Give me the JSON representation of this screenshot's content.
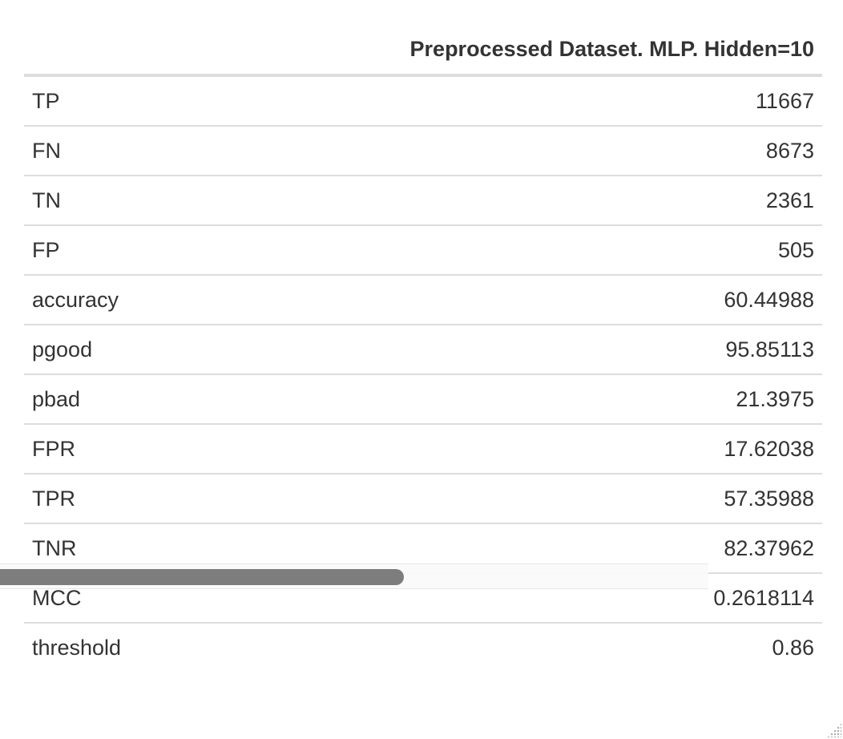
{
  "table": {
    "header": {
      "label_column": "",
      "value_column": "Preprocessed Dataset. MLP. Hidden=10"
    },
    "rows": [
      {
        "label": "TP",
        "value": "11667"
      },
      {
        "label": "FN",
        "value": "8673"
      },
      {
        "label": "TN",
        "value": "2361"
      },
      {
        "label": "FP",
        "value": "505"
      },
      {
        "label": "accuracy",
        "value": "60.44988"
      },
      {
        "label": "pgood",
        "value": "95.85113"
      },
      {
        "label": "pbad",
        "value": "21.3975"
      },
      {
        "label": "FPR",
        "value": "17.62038"
      },
      {
        "label": "TPR",
        "value": "57.35988"
      },
      {
        "label": "TNR",
        "value": "82.37962"
      },
      {
        "label": "MCC",
        "value": "0.2618114"
      },
      {
        "label": "threshold",
        "value": "0.86"
      }
    ]
  },
  "scrollbar": {
    "horizontal_position_fraction": 0.0
  }
}
